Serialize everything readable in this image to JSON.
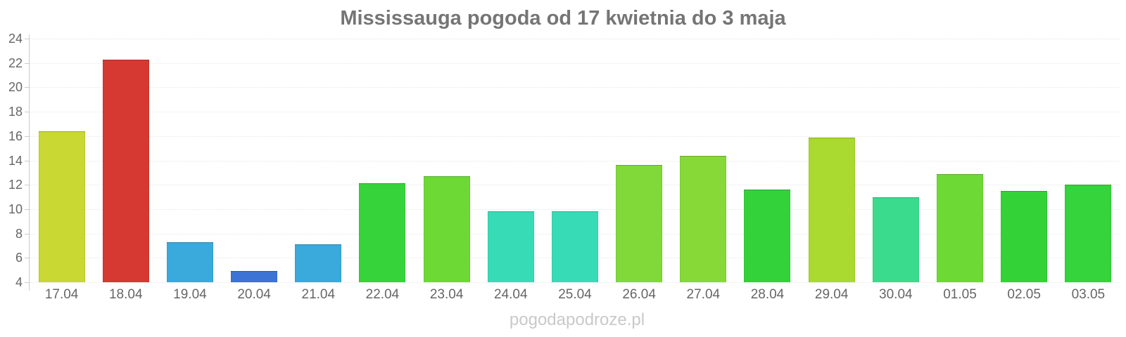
{
  "page": {
    "watermark": "pogodapodroze.pl"
  },
  "chart_data": {
    "type": "bar",
    "title": "Mississauga pogoda od 17 kwietnia do 3 maja",
    "categories": [
      "17.04",
      "18.04",
      "19.04",
      "20.04",
      "21.04",
      "22.04",
      "23.04",
      "24.04",
      "25.04",
      "26.04",
      "27.04",
      "28.04",
      "29.04",
      "30.04",
      "01.05",
      "02.05",
      "03.05"
    ],
    "values": [
      16.4,
      22.3,
      7.3,
      4.9,
      7.1,
      12.1,
      12.7,
      9.8,
      9.8,
      13.6,
      14.4,
      11.6,
      15.9,
      11.0,
      12.9,
      11.5,
      12.0
    ],
    "bar_colors": [
      "#c9d832",
      "#d63832",
      "#3aa9dc",
      "#3c73d4",
      "#3aa9dc",
      "#37d33b",
      "#6dd935",
      "#37dcb7",
      "#37dcb7",
      "#80d938",
      "#86d936",
      "#34d23a",
      "#aad92f",
      "#3bdb8e",
      "#6dd935",
      "#33d338",
      "#35d33c"
    ],
    "xlabel": "",
    "ylabel": "",
    "ylim": [
      4,
      24
    ],
    "yticks": [
      4,
      6,
      8,
      10,
      12,
      14,
      16,
      18,
      20,
      22,
      24
    ],
    "grid": true,
    "legend_position": "none"
  },
  "style": {
    "title_color": "#757575",
    "axis_label_color": "#666666",
    "axis_line_color": "#cccccc",
    "gridline_color": "#e8e8e8",
    "watermark_color": "#c9c9c9",
    "background": "#ffffff"
  }
}
